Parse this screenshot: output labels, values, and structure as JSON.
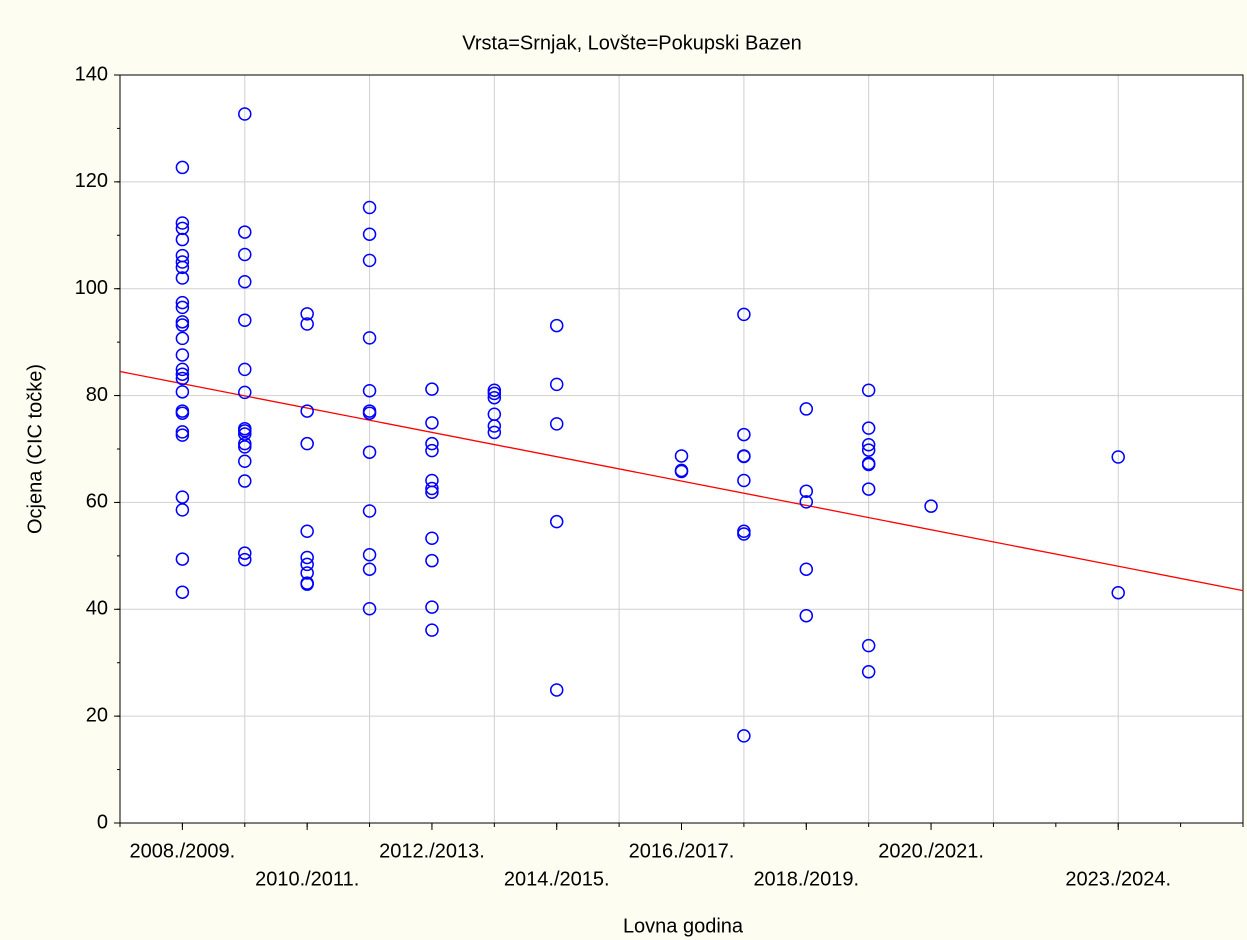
{
  "chart_data": {
    "type": "scatter",
    "title": "Vrsta=Srnjak, Lovšte=Pokupski Bazen",
    "x_label": "Lovna godina",
    "y_label": "Ocjena (CIC točke)",
    "color": "#0000ff",
    "x": [
      0,
      0,
      0,
      0,
      0,
      0,
      0,
      0,
      0,
      0,
      0,
      0,
      0,
      0,
      0,
      0,
      0,
      0,
      0,
      0,
      0,
      0,
      0,
      0,
      0,
      0,
      1,
      1,
      1,
      1,
      1,
      1,
      1,
      1,
      1,
      1,
      1,
      1,
      1,
      1,
      1,
      1,
      2,
      2,
      2,
      2,
      2,
      2,
      2,
      2,
      2,
      2,
      3,
      3,
      3,
      3,
      3,
      3,
      3,
      3,
      3,
      3,
      3,
      3,
      4,
      4,
      4,
      4,
      4,
      4,
      4,
      4,
      4,
      4,
      4,
      5,
      5,
      5,
      5,
      5,
      5,
      6,
      6,
      6,
      6,
      6,
      8,
      8,
      8,
      9,
      9,
      9,
      9,
      9,
      9,
      9,
      9,
      10,
      10,
      10,
      10,
      10,
      11,
      11,
      11,
      11,
      11,
      11,
      11,
      11,
      11,
      12,
      15,
      15
    ],
    "values": [
      122.7,
      112.3,
      111.3,
      109.2,
      106.2,
      105,
      104,
      102,
      97.4,
      96.5,
      93.8,
      93.2,
      90.7,
      87.6,
      84.9,
      84,
      83.2,
      80.7,
      77.1,
      76.7,
      73.2,
      72.6,
      61,
      58.6,
      49.4,
      43.2,
      132.7,
      110.6,
      106.4,
      101.3,
      94.1,
      84.9,
      80.6,
      73.8,
      73.4,
      72.8,
      71,
      70.4,
      67.7,
      64,
      50.5,
      49.3,
      95.3,
      93.4,
      77.1,
      71,
      54.6,
      49.7,
      48.4,
      46.8,
      44.9,
      44.7,
      115.2,
      110.2,
      105.3,
      90.8,
      80.9,
      77.1,
      76.7,
      69.4,
      58.4,
      50.2,
      47.5,
      40.1,
      81.2,
      74.9,
      71,
      69.7,
      64.1,
      62.6,
      61.9,
      53.3,
      49.1,
      40.4,
      36.1,
      81,
      80.4,
      79.6,
      76.5,
      74.3,
      73.1,
      93.1,
      82.1,
      74.7,
      56.4,
      24.9,
      68.7,
      66,
      65.8,
      95.2,
      72.7,
      68.7,
      68.6,
      64.1,
      54.6,
      54.1,
      16.3,
      77.5,
      62.1,
      60.1,
      47.5,
      38.8,
      81,
      73.9,
      70.8,
      69.8,
      67.3,
      67.1,
      62.5,
      33.2,
      28.3,
      59.3,
      68.5,
      43.1
    ],
    "fit": {
      "color": "#ff0000",
      "x": [
        -1,
        17
      ],
      "y": [
        84.5,
        43.5
      ]
    },
    "xlim": [
      -1,
      17
    ],
    "xticks": [
      {
        "value": 0,
        "label": "2008./2009."
      },
      {
        "value": 2,
        "label": "2010./2011."
      },
      {
        "value": 4,
        "label": "2012./2013."
      },
      {
        "value": 6,
        "label": "2014./2015."
      },
      {
        "value": 8,
        "label": "2016./2017."
      },
      {
        "value": 10,
        "label": "2018./2019."
      },
      {
        "value": 12,
        "label": "2020./2021."
      },
      {
        "value": 15,
        "label": "2023./2024."
      }
    ],
    "xgrid": [
      1,
      3,
      5,
      7,
      9,
      11,
      13,
      15
    ],
    "ylim": [
      0,
      140
    ],
    "yticks": [
      0,
      20,
      40,
      60,
      80,
      100,
      120,
      140
    ],
    "grid": true
  }
}
